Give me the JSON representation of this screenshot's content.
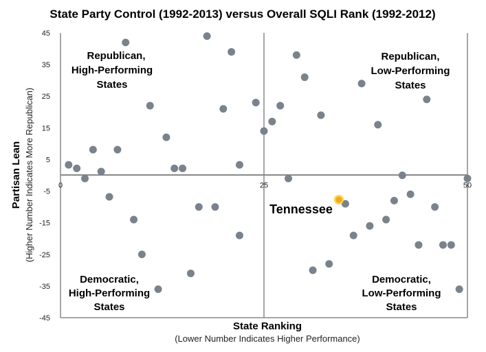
{
  "chart_data": {
    "type": "scatter",
    "title": "State Party Control (1992-2013) versus Overall SQLI Rank (1992-2012)",
    "xlabel": "State Ranking",
    "xlabel_sub": "(Lower Number Indicates Higher Performance)",
    "ylabel": "Partisan Lean",
    "ylabel_sub": "(Higher Number Indicates More Republican)",
    "xlim": [
      0,
      50
    ],
    "ylim": [
      -45,
      45
    ],
    "x_ticks": [
      0,
      25,
      50
    ],
    "y_ticks": [
      45,
      35,
      25,
      15,
      5,
      -5,
      -15,
      -25,
      -35,
      -45
    ],
    "grid": false,
    "quadrant_labels": {
      "top_left": [
        "Republican,",
        "High-Performing",
        "States"
      ],
      "top_right": [
        "Republican,",
        "Low-Performing",
        "States"
      ],
      "bottom_left": [
        "Democratic,",
        "High-Performing",
        "States"
      ],
      "bottom_right": [
        "Democratic,",
        "Low-Performing",
        "States"
      ]
    },
    "colors": {
      "points": "#7a828c",
      "highlight": "#f5a623",
      "highlight_ring": "#ffd54a",
      "axis": "#888888"
    },
    "highlight": {
      "label": "Tennessee",
      "x": 34.2,
      "y": -7.7
    },
    "points": [
      {
        "x": 1,
        "y": 3.3
      },
      {
        "x": 2,
        "y": 2.2
      },
      {
        "x": 3,
        "y": -1
      },
      {
        "x": 4,
        "y": 8.1
      },
      {
        "x": 5,
        "y": 1.2
      },
      {
        "x": 6,
        "y": -6.8
      },
      {
        "x": 7,
        "y": 8.1
      },
      {
        "x": 8,
        "y": 42
      },
      {
        "x": 9,
        "y": -14
      },
      {
        "x": 10,
        "y": -25
      },
      {
        "x": 11,
        "y": 22
      },
      {
        "x": 12,
        "y": -36
      },
      {
        "x": 13,
        "y": 12
      },
      {
        "x": 14,
        "y": 2.2
      },
      {
        "x": 15,
        "y": 2.2
      },
      {
        "x": 16,
        "y": -31
      },
      {
        "x": 17,
        "y": -10
      },
      {
        "x": 18,
        "y": 44
      },
      {
        "x": 19,
        "y": -10
      },
      {
        "x": 20,
        "y": 21
      },
      {
        "x": 21,
        "y": 39
      },
      {
        "x": 22,
        "y": 3.3
      },
      {
        "x": 22,
        "y": -19
      },
      {
        "x": 24,
        "y": 23
      },
      {
        "x": 25,
        "y": 14
      },
      {
        "x": 26,
        "y": 17
      },
      {
        "x": 27,
        "y": 22
      },
      {
        "x": 28,
        "y": -1
      },
      {
        "x": 29,
        "y": 38
      },
      {
        "x": 30,
        "y": 31
      },
      {
        "x": 31,
        "y": -30
      },
      {
        "x": 32,
        "y": 19
      },
      {
        "x": 33,
        "y": -28
      },
      {
        "x": 35,
        "y": -9
      },
      {
        "x": 36,
        "y": -19
      },
      {
        "x": 37,
        "y": 29
      },
      {
        "x": 38,
        "y": -16
      },
      {
        "x": 39,
        "y": 16
      },
      {
        "x": 40,
        "y": -14
      },
      {
        "x": 41,
        "y": -8
      },
      {
        "x": 42,
        "y": 0
      },
      {
        "x": 43,
        "y": -6
      },
      {
        "x": 44,
        "y": -22
      },
      {
        "x": 45,
        "y": 24
      },
      {
        "x": 46,
        "y": -10
      },
      {
        "x": 47,
        "y": -22
      },
      {
        "x": 48,
        "y": -22
      },
      {
        "x": 49,
        "y": -36
      },
      {
        "x": 50,
        "y": -1
      }
    ]
  }
}
